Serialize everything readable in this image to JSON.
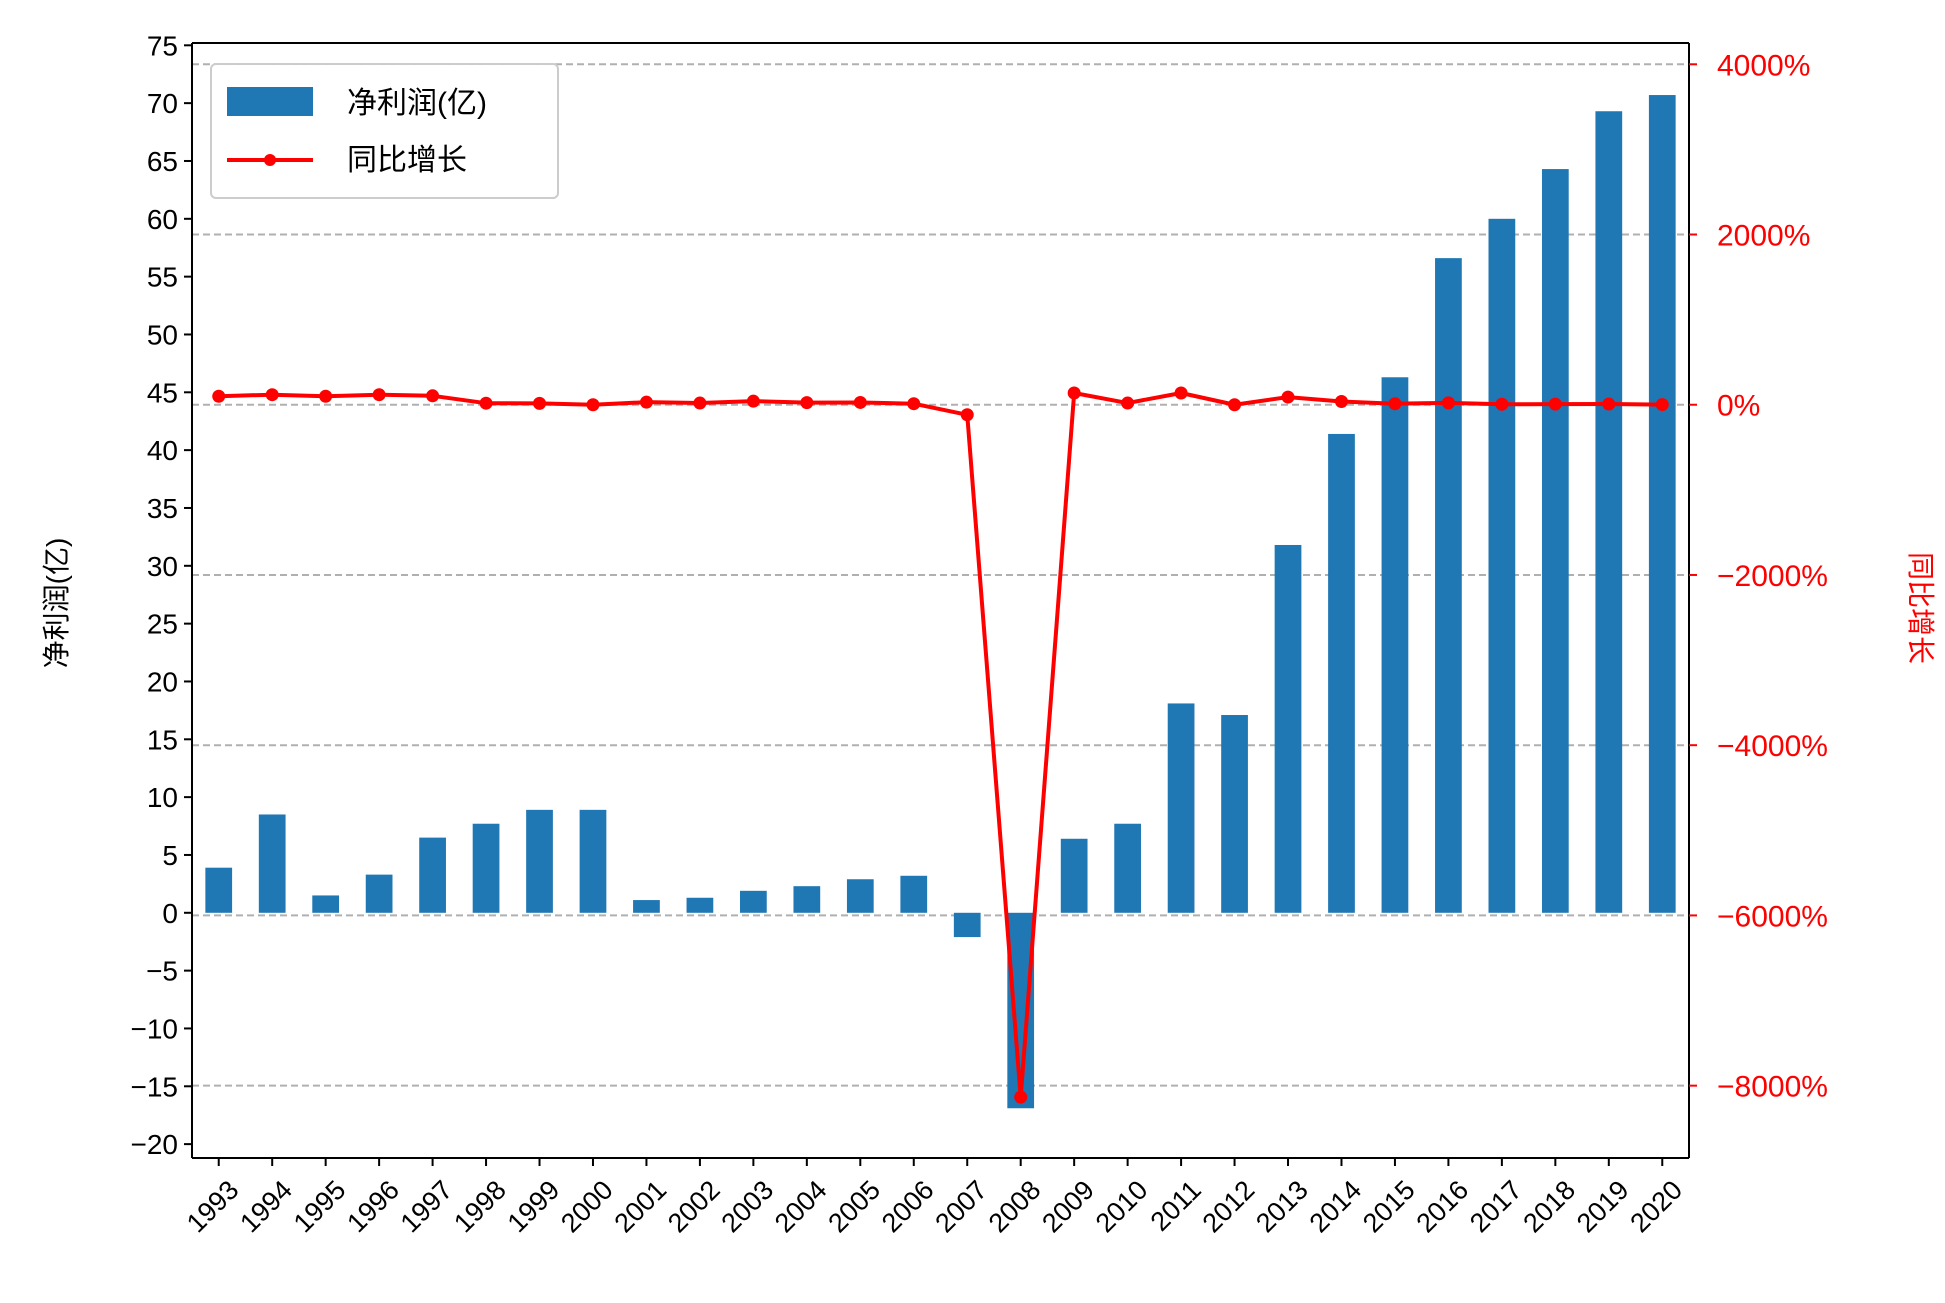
{
  "chart_data": {
    "type": "bar",
    "categories": [
      "1993",
      "1994",
      "1995",
      "1996",
      "1997",
      "1998",
      "1999",
      "2000",
      "2001",
      "2002",
      "2003",
      "2004",
      "2005",
      "2006",
      "2007",
      "2008",
      "2009",
      "2010",
      "2011",
      "2012",
      "2013",
      "2014",
      "2015",
      "2016",
      "2017",
      "2018",
      "2019",
      "2020"
    ],
    "series": [
      {
        "name": "净利润(亿)",
        "type": "bar",
        "axis": "left",
        "color": "#1f77b4",
        "values": [
          3.9,
          8.5,
          1.5,
          3.3,
          6.5,
          7.7,
          8.9,
          8.9,
          1.1,
          1.3,
          1.9,
          2.3,
          2.9,
          3.2,
          -2.1,
          -16.9,
          6.4,
          7.7,
          18.1,
          17.1,
          31.8,
          41.4,
          46.3,
          56.6,
          60.0,
          64.3,
          69.3,
          70.7
        ]
      },
      {
        "name": "同比增长",
        "type": "line",
        "axis": "right",
        "color": "#ff0000",
        "marker": "circle",
        "values_percent": [
          100,
          118,
          100,
          118,
          105,
          18,
          16,
          0,
          30,
          20,
          42,
          25,
          27,
          12,
          -118,
          -8135,
          138,
          20,
          138,
          0,
          90,
          38,
          12,
          22,
          6,
          7,
          8,
          2
        ]
      }
    ],
    "ylabel": "净利润(亿)",
    "ylim": [
      -21.2,
      75.2
    ],
    "yticks": [
      -20,
      -15,
      -10,
      -5,
      0,
      5,
      10,
      15,
      20,
      25,
      30,
      35,
      40,
      45,
      50,
      55,
      60,
      65,
      70,
      75
    ],
    "ylabel_right": "同比增长",
    "ylim_right_percent": [
      -8850,
      4250
    ],
    "yticks_right": [
      {
        "value": -8000,
        "label": "−8000%"
      },
      {
        "value": -6000,
        "label": "−6000%"
      },
      {
        "value": -4000,
        "label": "−4000%"
      },
      {
        "value": -2000,
        "label": "−2000%"
      },
      {
        "value": 0,
        "label": "0%"
      },
      {
        "value": 2000,
        "label": "2000%"
      },
      {
        "value": 4000,
        "label": "4000%"
      }
    ],
    "right_axis_color": "#ff0000",
    "grid": "horizontal dashed at right-axis ticks",
    "legend": {
      "placement": "upper-left",
      "entries": [
        "净利润(亿)",
        "同比增长"
      ]
    },
    "xtick_rotation_deg": 45
  }
}
